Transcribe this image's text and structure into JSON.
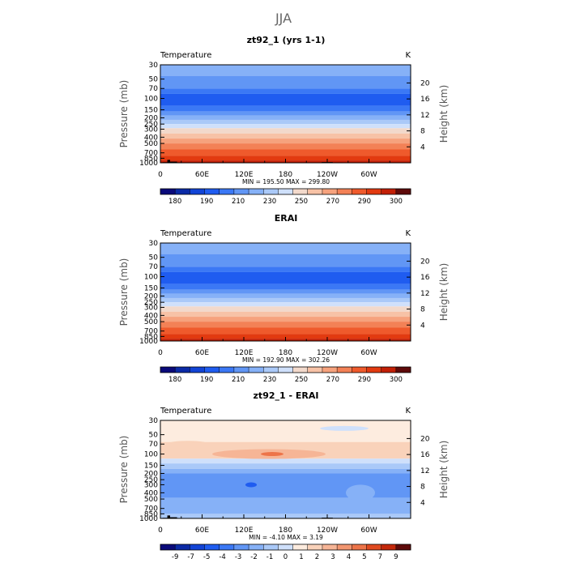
{
  "page": {
    "title": "JJA"
  },
  "colors": {
    "temp_palette": [
      "#0a0a7a",
      "#0b2aa6",
      "#1244d6",
      "#1f5cf0",
      "#3b78f5",
      "#6196f5",
      "#86b1f7",
      "#aac9f8",
      "#cfe0fb",
      "#f2d9cb",
      "#f7c2a6",
      "#f6a27d",
      "#f38156",
      "#ef5a2c",
      "#e23a10",
      "#c21f06",
      "#5e0a0a"
    ],
    "diff_palette": [
      "#0a0a7a",
      "#0b2aa6",
      "#1244d6",
      "#1f5cf0",
      "#3b78f5",
      "#6196f5",
      "#86b1f7",
      "#aac9f8",
      "#cfe0fb",
      "#fdecdf",
      "#f9d2ba",
      "#f6b596",
      "#f29670",
      "#ed7449",
      "#e04a20",
      "#c4280a",
      "#5e0a0a"
    ]
  },
  "chart_data": [
    {
      "type": "heatmap",
      "title": "zt92_1 (yrs 1-1)",
      "left_label": "Temperature",
      "right_label": "K",
      "ylabel": "Pressure (mb)",
      "ylabel_right": "Height (km)",
      "yticks": [
        "30",
        "50",
        "70",
        "100",
        "150",
        "200",
        "250",
        "300",
        "400",
        "500",
        "700",
        "850",
        "1000"
      ],
      "yticks_right": [
        "20",
        "16",
        "12",
        "8",
        "4"
      ],
      "xticks": [
        "0",
        "60E",
        "120E",
        "180",
        "120W",
        "60W"
      ],
      "stats": "MIN = 195.50   MAX = 299.80",
      "colorbar_labels": [
        "180",
        "190",
        "210",
        "230",
        "250",
        "270",
        "290",
        "300"
      ],
      "bands": [
        {
          "p_top": 30,
          "p_bot": 45,
          "color_index": 6
        },
        {
          "p_top": 45,
          "p_bot": 70,
          "color_index": 5
        },
        {
          "p_top": 70,
          "p_bot": 85,
          "color_index": 4
        },
        {
          "p_top": 85,
          "p_bot": 130,
          "color_index": 3
        },
        {
          "p_top": 130,
          "p_bot": 160,
          "color_index": 4
        },
        {
          "p_top": 160,
          "p_bot": 185,
          "color_index": 5
        },
        {
          "p_top": 185,
          "p_bot": 215,
          "color_index": 6
        },
        {
          "p_top": 215,
          "p_bot": 250,
          "color_index": 7
        },
        {
          "p_top": 250,
          "p_bot": 290,
          "color_index": 8
        },
        {
          "p_top": 290,
          "p_bot": 350,
          "color_index": 9
        },
        {
          "p_top": 350,
          "p_bot": 420,
          "color_index": 10
        },
        {
          "p_top": 420,
          "p_bot": 500,
          "color_index": 11
        },
        {
          "p_top": 500,
          "p_bot": 620,
          "color_index": 12
        },
        {
          "p_top": 620,
          "p_bot": 780,
          "color_index": 13
        },
        {
          "p_top": 780,
          "p_bot": 920,
          "color_index": 14
        },
        {
          "p_top": 920,
          "p_bot": 1000,
          "color_index": 15
        }
      ],
      "terrain": [
        [
          3,
          10,
          980
        ],
        [
          10,
          14,
          900
        ],
        [
          14,
          24,
          960
        ],
        [
          29,
          31,
          990
        ],
        [
          79,
          81,
          990
        ],
        [
          232,
          248,
          975
        ],
        [
          250,
          262,
          985
        ]
      ]
    },
    {
      "type": "heatmap",
      "title": "ERAI",
      "left_label": "Temperature",
      "right_label": "K",
      "ylabel": "Pressure (mb)",
      "ylabel_right": "Height (km)",
      "yticks": [
        "30",
        "50",
        "70",
        "100",
        "150",
        "200",
        "250",
        "300",
        "400",
        "500",
        "700",
        "850",
        "1000"
      ],
      "yticks_right": [
        "20",
        "16",
        "12",
        "8",
        "4"
      ],
      "xticks": [
        "0",
        "60E",
        "120E",
        "180",
        "120W",
        "60W"
      ],
      "stats": "MIN = 192.90   MAX = 302.26",
      "colorbar_labels": [
        "180",
        "190",
        "210",
        "230",
        "250",
        "270",
        "290",
        "300"
      ],
      "bands": [
        {
          "p_top": 30,
          "p_bot": 45,
          "color_index": 6
        },
        {
          "p_top": 45,
          "p_bot": 70,
          "color_index": 5
        },
        {
          "p_top": 70,
          "p_bot": 85,
          "color_index": 4
        },
        {
          "p_top": 85,
          "p_bot": 130,
          "color_index": 3
        },
        {
          "p_top": 130,
          "p_bot": 160,
          "color_index": 4
        },
        {
          "p_top": 160,
          "p_bot": 185,
          "color_index": 5
        },
        {
          "p_top": 185,
          "p_bot": 215,
          "color_index": 6
        },
        {
          "p_top": 215,
          "p_bot": 250,
          "color_index": 7
        },
        {
          "p_top": 250,
          "p_bot": 290,
          "color_index": 8
        },
        {
          "p_top": 290,
          "p_bot": 350,
          "color_index": 9
        },
        {
          "p_top": 350,
          "p_bot": 420,
          "color_index": 10
        },
        {
          "p_top": 420,
          "p_bot": 500,
          "color_index": 11
        },
        {
          "p_top": 500,
          "p_bot": 620,
          "color_index": 12
        },
        {
          "p_top": 620,
          "p_bot": 780,
          "color_index": 13
        },
        {
          "p_top": 780,
          "p_bot": 920,
          "color_index": 14
        },
        {
          "p_top": 920,
          "p_bot": 1000,
          "color_index": 15
        }
      ],
      "terrain": []
    },
    {
      "type": "heatmap",
      "title": "zt92_1 - ERAI",
      "left_label": "Temperature",
      "right_label": "K",
      "ylabel": "Pressure (mb)",
      "ylabel_right": "Height (km)",
      "yticks": [
        "30",
        "50",
        "70",
        "100",
        "150",
        "200",
        "250",
        "300",
        "400",
        "500",
        "700",
        "850",
        "1000"
      ],
      "yticks_right": [
        "20",
        "16",
        "12",
        "8",
        "4"
      ],
      "xticks": [
        "0",
        "60E",
        "120E",
        "180",
        "120W",
        "60W"
      ],
      "stats": "MIN =   -4.10   MAX =    3.19",
      "colorbar_labels": [
        "-9",
        "-7",
        "-5",
        "-4",
        "-3",
        "-2",
        "-1",
        "0",
        "1",
        "2",
        "3",
        "4",
        "5",
        "7",
        "9"
      ],
      "bands": [
        {
          "p_top": 30,
          "p_bot": 65,
          "color_index": 9
        },
        {
          "p_top": 65,
          "p_bot": 118,
          "color_index": 10
        },
        {
          "p_top": 118,
          "p_bot": 140,
          "color_index": 8
        },
        {
          "p_top": 140,
          "p_bot": 170,
          "color_index": 7
        },
        {
          "p_top": 170,
          "p_bot": 200,
          "color_index": 6
        },
        {
          "p_top": 200,
          "p_bot": 480,
          "color_index": 5
        },
        {
          "p_top": 480,
          "p_bot": 850,
          "color_index": 6
        },
        {
          "p_top": 850,
          "p_bot": 1000,
          "color_index": 7
        }
      ],
      "terrain": [
        [
          3,
          10,
          980
        ],
        [
          10,
          14,
          900
        ],
        [
          14,
          24,
          960
        ],
        [
          29,
          31,
          990
        ],
        [
          79,
          81,
          990
        ],
        [
          232,
          248,
          975
        ],
        [
          250,
          262,
          985
        ]
      ]
    }
  ]
}
